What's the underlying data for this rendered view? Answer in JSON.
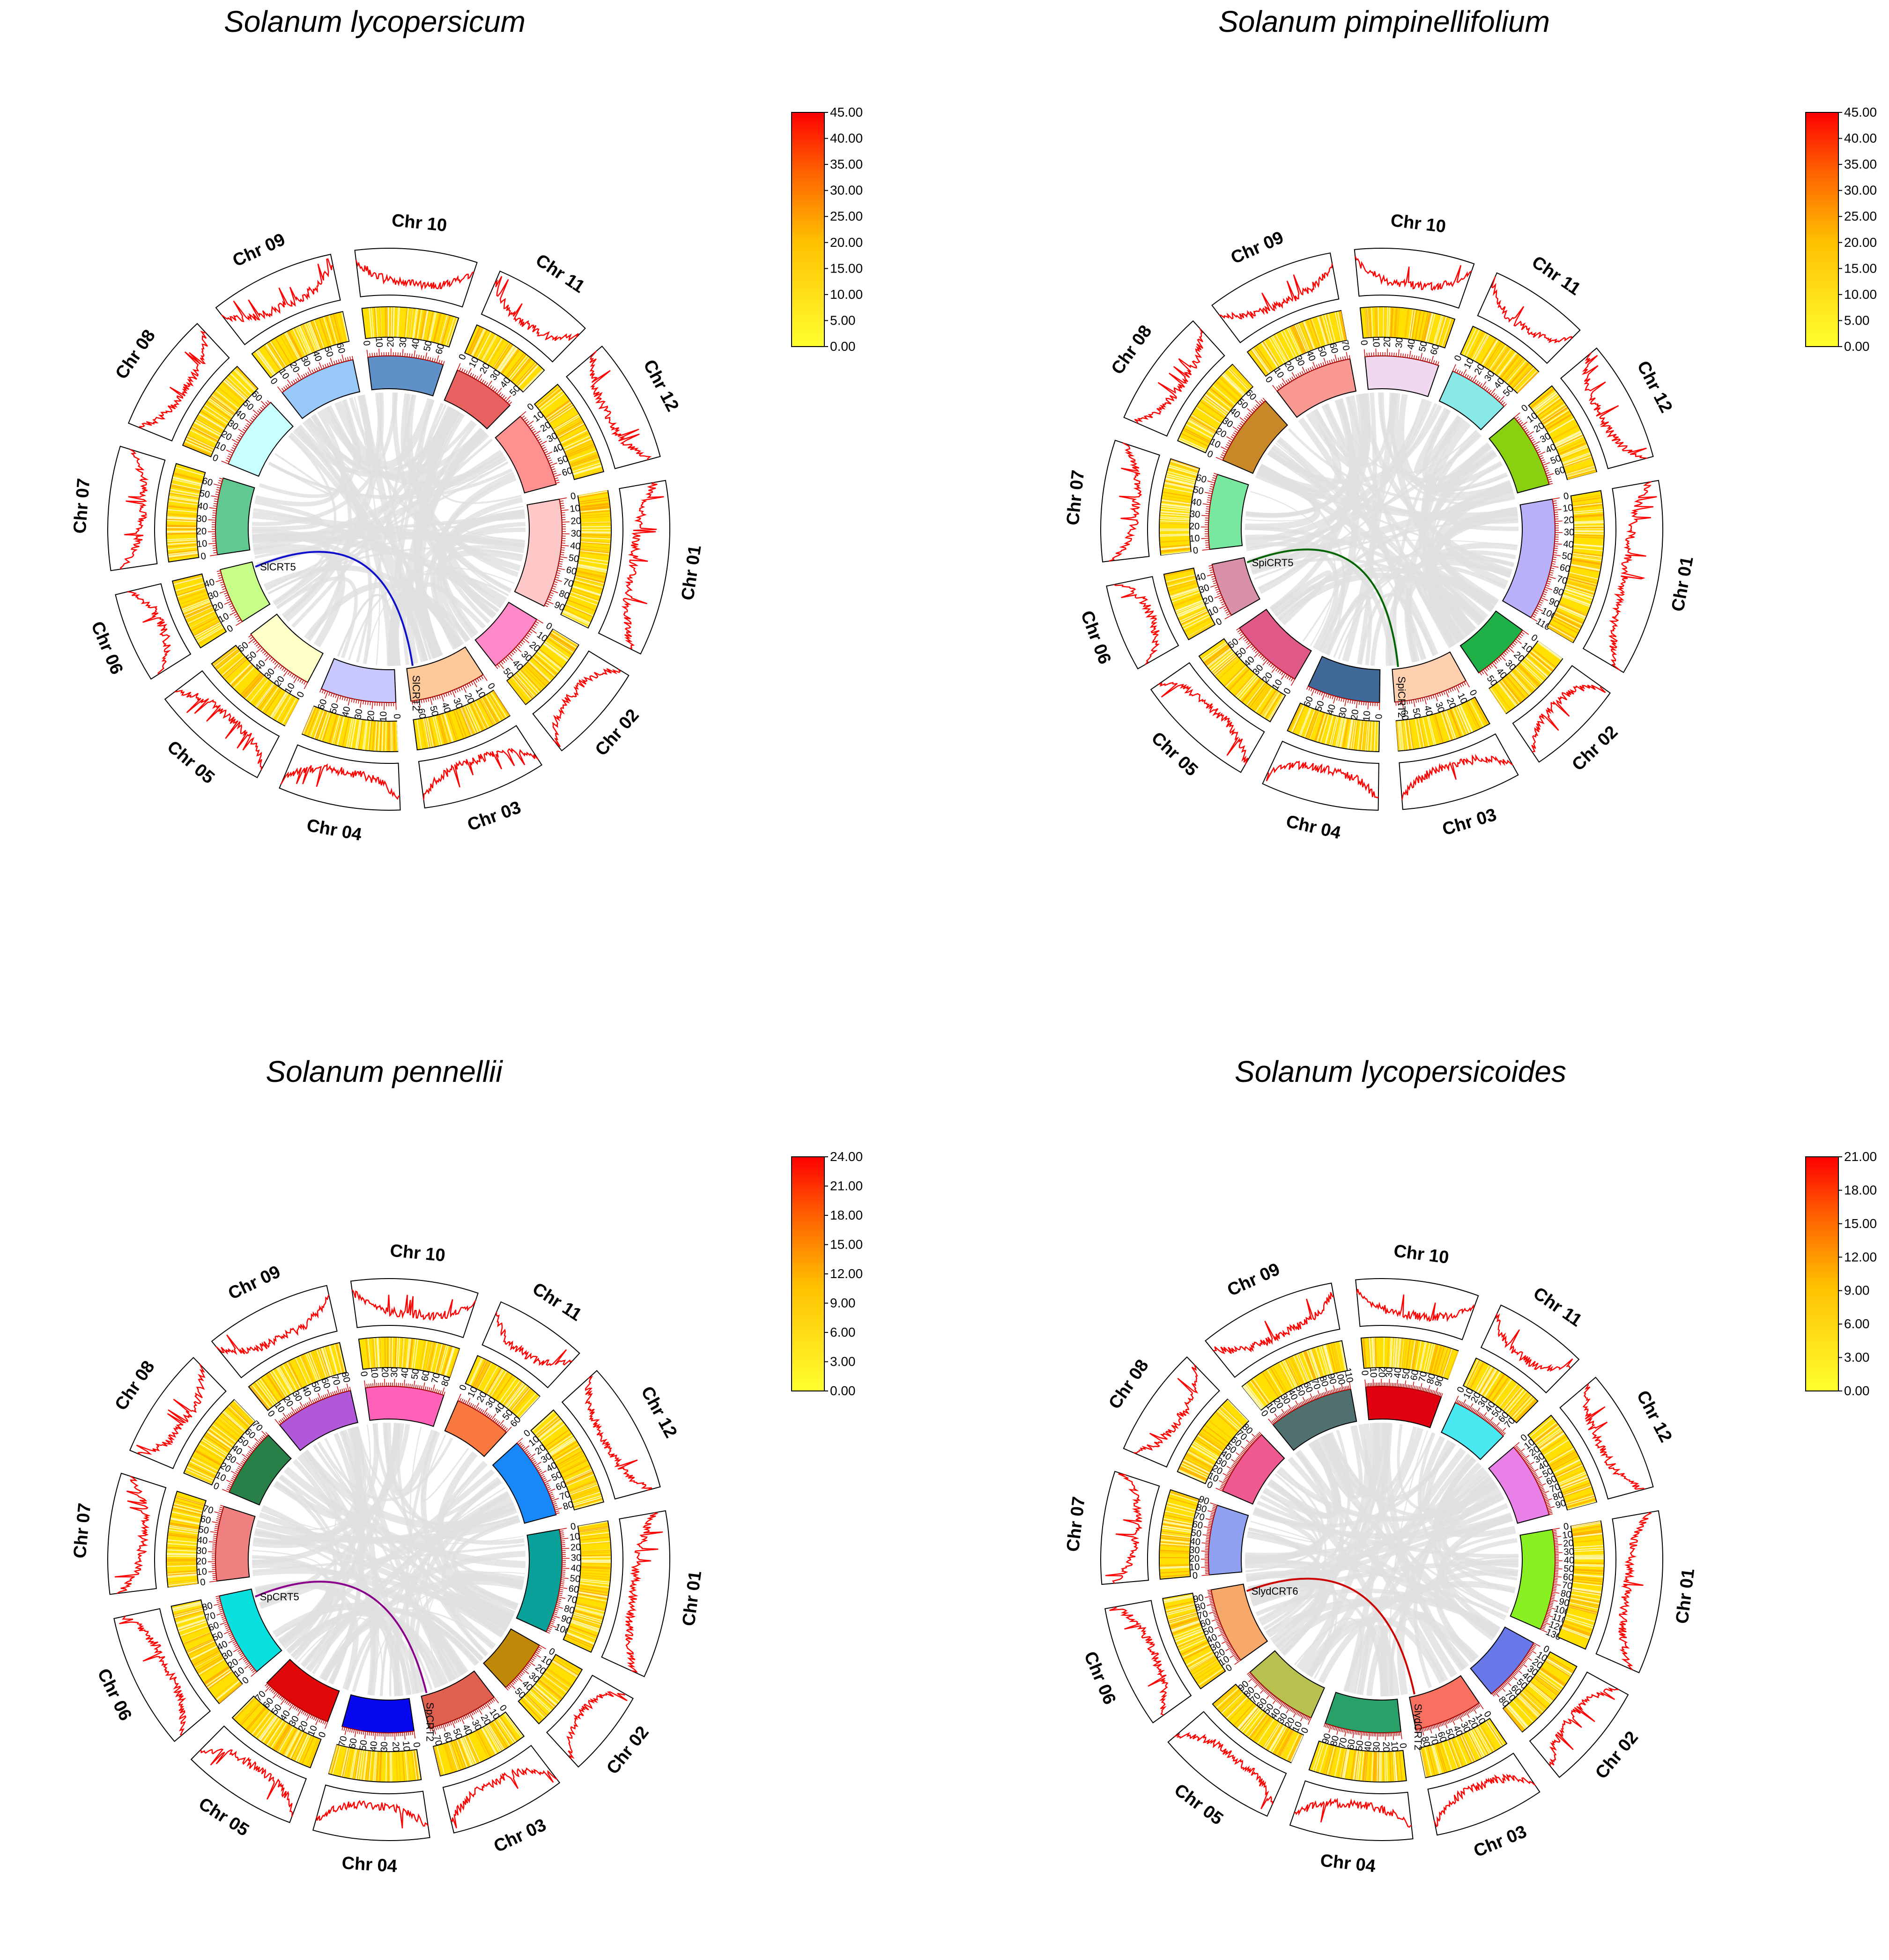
{
  "panels": [
    {
      "title": "Solanum lycopersicum",
      "legend": [
        "45.00",
        "40.00",
        "35.00",
        "30.00",
        "25.00",
        "20.00",
        "15.00",
        "10.00",
        "5.00",
        "0.00"
      ],
      "link": {
        "from": "SlCRT5",
        "to": "SlCRT2",
        "color": "#1010cc"
      },
      "chromosomes": [
        {
          "label": "Chr 01",
          "length": 95,
          "color": "#ffc8c8",
          "ticks": [
            "0",
            "10",
            "20",
            "30",
            "40",
            "50",
            "60",
            "70",
            "80",
            "90"
          ]
        },
        {
          "label": "Chr 02",
          "length": 54,
          "color": "#ff88c8",
          "ticks": [
            "0",
            "10",
            "20",
            "30",
            "40",
            "50"
          ]
        },
        {
          "label": "Chr 03",
          "length": 67,
          "color": "#ffc898",
          "ticks": [
            "0",
            "10",
            "20",
            "30",
            "40",
            "50",
            "60"
          ]
        },
        {
          "label": "Chr 04",
          "length": 66,
          "color": "#c8c8ff",
          "ticks": [
            "0",
            "10",
            "20",
            "30",
            "40",
            "50",
            "60"
          ]
        },
        {
          "label": "Chr 05",
          "length": 65,
          "color": "#ffffc8",
          "ticks": [
            "0",
            "10",
            "20",
            "30",
            "40",
            "50",
            "60"
          ]
        },
        {
          "label": "Chr 06",
          "length": 49,
          "color": "#c8ff88",
          "ticks": [
            "0",
            "10",
            "20",
            "30",
            "40"
          ]
        },
        {
          "label": "Chr 07",
          "length": 67,
          "color": "#60c890",
          "ticks": [
            "0",
            "10",
            "20",
            "30",
            "40",
            "50",
            "60"
          ]
        },
        {
          "label": "Chr 08",
          "length": 65,
          "color": "#c8ffff",
          "ticks": [
            "0",
            "10",
            "20",
            "30",
            "40",
            "50",
            "60"
          ]
        },
        {
          "label": "Chr 09",
          "length": 68,
          "color": "#98c8f8",
          "ticks": [
            "0",
            "10",
            "20",
            "30",
            "40",
            "50",
            "60"
          ]
        },
        {
          "label": "Chr 10",
          "length": 66,
          "color": "#6090c8",
          "ticks": [
            "0",
            "10",
            "20",
            "30",
            "40",
            "50",
            "60"
          ]
        },
        {
          "label": "Chr 11",
          "length": 55,
          "color": "#e86060",
          "ticks": [
            "0",
            "10",
            "20",
            "30",
            "40",
            "50"
          ]
        },
        {
          "label": "Chr 12",
          "length": 67,
          "color": "#ff9090",
          "ticks": [
            "0",
            "10",
            "20",
            "30",
            "40",
            "50",
            "60"
          ]
        }
      ]
    },
    {
      "title": "Solanum pimpinellifolium",
      "legend": [
        "45.00",
        "40.00",
        "35.00",
        "30.00",
        "25.00",
        "20.00",
        "15.00",
        "10.00",
        "5.00",
        "0.00"
      ],
      "link": {
        "from": "SpiCRT5",
        "to": "SpiCRT2",
        "color": "#006400"
      },
      "chromosomes": [
        {
          "label": "Chr 01",
          "length": 110,
          "color": "#b8b0f8",
          "ticks": [
            "0",
            "10",
            "20",
            "30",
            "40",
            "50",
            "60",
            "70",
            "80",
            "90",
            "100",
            "110"
          ]
        },
        {
          "label": "Chr 02",
          "length": 55,
          "color": "#20b048",
          "ticks": [
            "0",
            "10",
            "20",
            "30",
            "40",
            "50"
          ]
        },
        {
          "label": "Chr 03",
          "length": 67,
          "color": "#ffd0b0",
          "ticks": [
            "0",
            "10",
            "20",
            "30",
            "40",
            "50",
            "60"
          ]
        },
        {
          "label": "Chr 04",
          "length": 66,
          "color": "#406898",
          "ticks": [
            "0",
            "10",
            "20",
            "30",
            "40",
            "50",
            "60"
          ]
        },
        {
          "label": "Chr 05",
          "length": 68,
          "color": "#e05888",
          "ticks": [
            "0",
            "10",
            "20",
            "30",
            "40",
            "50",
            "60"
          ]
        },
        {
          "label": "Chr 06",
          "length": 49,
          "color": "#d890a8",
          "ticks": [
            "0",
            "10",
            "20",
            "30",
            "40"
          ]
        },
        {
          "label": "Chr 07",
          "length": 68,
          "color": "#78e8a0",
          "ticks": [
            "0",
            "10",
            "20",
            "30",
            "40",
            "50",
            "60"
          ]
        },
        {
          "label": "Chr 08",
          "length": 66,
          "color": "#c88828",
          "ticks": [
            "0",
            "10",
            "20",
            "30",
            "40",
            "50",
            "60"
          ]
        },
        {
          "label": "Chr 09",
          "length": 72,
          "color": "#f89890",
          "ticks": [
            "0",
            "10",
            "20",
            "30",
            "40",
            "50",
            "60",
            "70"
          ]
        },
        {
          "label": "Chr 10",
          "length": 67,
          "color": "#f0d8f0",
          "ticks": [
            "0",
            "10",
            "20",
            "30",
            "40",
            "50",
            "60"
          ]
        },
        {
          "label": "Chr 11",
          "length": 56,
          "color": "#88e8e8",
          "ticks": [
            "0",
            "10",
            "20",
            "30",
            "40",
            "50"
          ]
        },
        {
          "label": "Chr 12",
          "length": 68,
          "color": "#88d010",
          "ticks": [
            "0",
            "10",
            "20",
            "30",
            "40",
            "50",
            "60"
          ]
        }
      ]
    },
    {
      "title": "Solanum pennellii",
      "legend": [
        "24.00",
        "21.00",
        "18.00",
        "15.00",
        "12.00",
        "9.00",
        "6.00",
        "3.00",
        "0.00"
      ],
      "link": {
        "from": "SpCRT5",
        "to": "SpCRT2",
        "color": "#8b008b"
      },
      "chromosomes": [
        {
          "label": "Chr 01",
          "length": 108,
          "color": "#08a098",
          "ticks": [
            "0",
            "10",
            "20",
            "30",
            "40",
            "50",
            "60",
            "70",
            "80",
            "90",
            "100"
          ]
        },
        {
          "label": "Chr 02",
          "length": 56,
          "color": "#c08808",
          "ticks": [
            "0",
            "10",
            "20",
            "30",
            "40",
            "50"
          ]
        },
        {
          "label": "Chr 03",
          "length": 75,
          "color": "#e06050",
          "ticks": [
            "0",
            "10",
            "20",
            "30",
            "40",
            "50",
            "60",
            "70"
          ]
        },
        {
          "label": "Chr 04",
          "length": 75,
          "color": "#0808f0",
          "ticks": [
            "0",
            "10",
            "20",
            "30",
            "40",
            "50",
            "60",
            "70"
          ]
        },
        {
          "label": "Chr 05",
          "length": 75,
          "color": "#e00808",
          "ticks": [
            "0",
            "10",
            "20",
            "30",
            "40",
            "50",
            "60",
            "70"
          ]
        },
        {
          "label": "Chr 06",
          "length": 88,
          "color": "#08e0e0",
          "ticks": [
            "0",
            "10",
            "20",
            "30",
            "40",
            "50",
            "60",
            "70",
            "80"
          ]
        },
        {
          "label": "Chr 07",
          "length": 78,
          "color": "#f08080",
          "ticks": [
            "0",
            "10",
            "20",
            "30",
            "40",
            "50",
            "60",
            "70"
          ]
        },
        {
          "label": "Chr 08",
          "length": 72,
          "color": "#288048",
          "ticks": [
            "0",
            "10",
            "20",
            "30",
            "40",
            "50",
            "60",
            "70"
          ]
        },
        {
          "label": "Chr 09",
          "length": 82,
          "color": "#b058d8",
          "ticks": [
            "0",
            "10",
            "20",
            "30",
            "40",
            "50",
            "60",
            "70",
            "80"
          ]
        },
        {
          "label": "Chr 10",
          "length": 82,
          "color": "#ff60b8",
          "ticks": [
            "0",
            "10",
            "20",
            "30",
            "40",
            "50",
            "60",
            "70",
            "80"
          ]
        },
        {
          "label": "Chr 11",
          "length": 60,
          "color": "#f87840",
          "ticks": [
            "0",
            "10",
            "20",
            "30",
            "40",
            "50",
            "60"
          ]
        },
        {
          "label": "Chr 12",
          "length": 85,
          "color": "#1888f8",
          "ticks": [
            "0",
            "10",
            "20",
            "30",
            "40",
            "50",
            "60",
            "70",
            "80"
          ]
        }
      ]
    },
    {
      "title": "Solanum lycopersicoides",
      "legend": [
        "21.00",
        "18.00",
        "15.00",
        "12.00",
        "9.00",
        "6.00",
        "3.00",
        "0.00"
      ],
      "link": {
        "from": "SlydCRT6",
        "to": "SlydCRT2",
        "color": "#cc0000"
      },
      "chromosomes": [
        {
          "label": "Chr 01",
          "length": 130,
          "color": "#88f020",
          "ticks": [
            "0",
            "10",
            "20",
            "30",
            "40",
            "50",
            "60",
            "70",
            "80",
            "90",
            "100",
            "110",
            "120",
            "130"
          ]
        },
        {
          "label": "Chr 02",
          "length": 85,
          "color": "#6878e8",
          "ticks": [
            "0",
            "10",
            "20",
            "30",
            "40",
            "50",
            "60",
            "70",
            "80"
          ]
        },
        {
          "label": "Chr 03",
          "length": 88,
          "color": "#f87060",
          "ticks": [
            "0",
            "10",
            "20",
            "30",
            "40",
            "50",
            "60",
            "70",
            "80"
          ]
        },
        {
          "label": "Chr 04",
          "length": 98,
          "color": "#28a068",
          "ticks": [
            "0",
            "10",
            "20",
            "30",
            "40",
            "50",
            "60",
            "70",
            "80",
            "90"
          ]
        },
        {
          "label": "Chr 05",
          "length": 98,
          "color": "#b8c050",
          "ticks": [
            "0",
            "10",
            "20",
            "30",
            "40",
            "50",
            "60",
            "70",
            "80",
            "90"
          ]
        },
        {
          "label": "Chr 06",
          "length": 98,
          "color": "#f8a868",
          "ticks": [
            "0",
            "10",
            "20",
            "30",
            "40",
            "50",
            "60",
            "70",
            "80",
            "90"
          ]
        },
        {
          "label": "Chr 07",
          "length": 90,
          "color": "#90a0f0",
          "ticks": [
            "0",
            "10",
            "20",
            "30",
            "40",
            "50",
            "60",
            "70",
            "80",
            "90"
          ]
        },
        {
          "label": "Chr 08",
          "length": 88,
          "color": "#f05890",
          "ticks": [
            "0",
            "10",
            "20",
            "30",
            "40",
            "50",
            "60",
            "70",
            "80"
          ]
        },
        {
          "label": "Chr 09",
          "length": 110,
          "color": "#507070",
          "ticks": [
            "0",
            "10",
            "20",
            "30",
            "40",
            "50",
            "60",
            "70",
            "80",
            "90",
            "100",
            "110"
          ]
        },
        {
          "label": "Chr 10",
          "length": 98,
          "color": "#e00010",
          "ticks": [
            "0",
            "10",
            "20",
            "30",
            "40",
            "50",
            "60",
            "70",
            "80",
            "90"
          ]
        },
        {
          "label": "Chr 11",
          "length": 75,
          "color": "#48e8f0",
          "ticks": [
            "0",
            "10",
            "20",
            "30",
            "40",
            "50",
            "60",
            "70"
          ]
        },
        {
          "label": "Chr 12",
          "length": 98,
          "color": "#e880e8",
          "ticks": [
            "0",
            "10",
            "20",
            "30",
            "40",
            "50",
            "60",
            "70",
            "80",
            "90"
          ]
        }
      ]
    }
  ]
}
